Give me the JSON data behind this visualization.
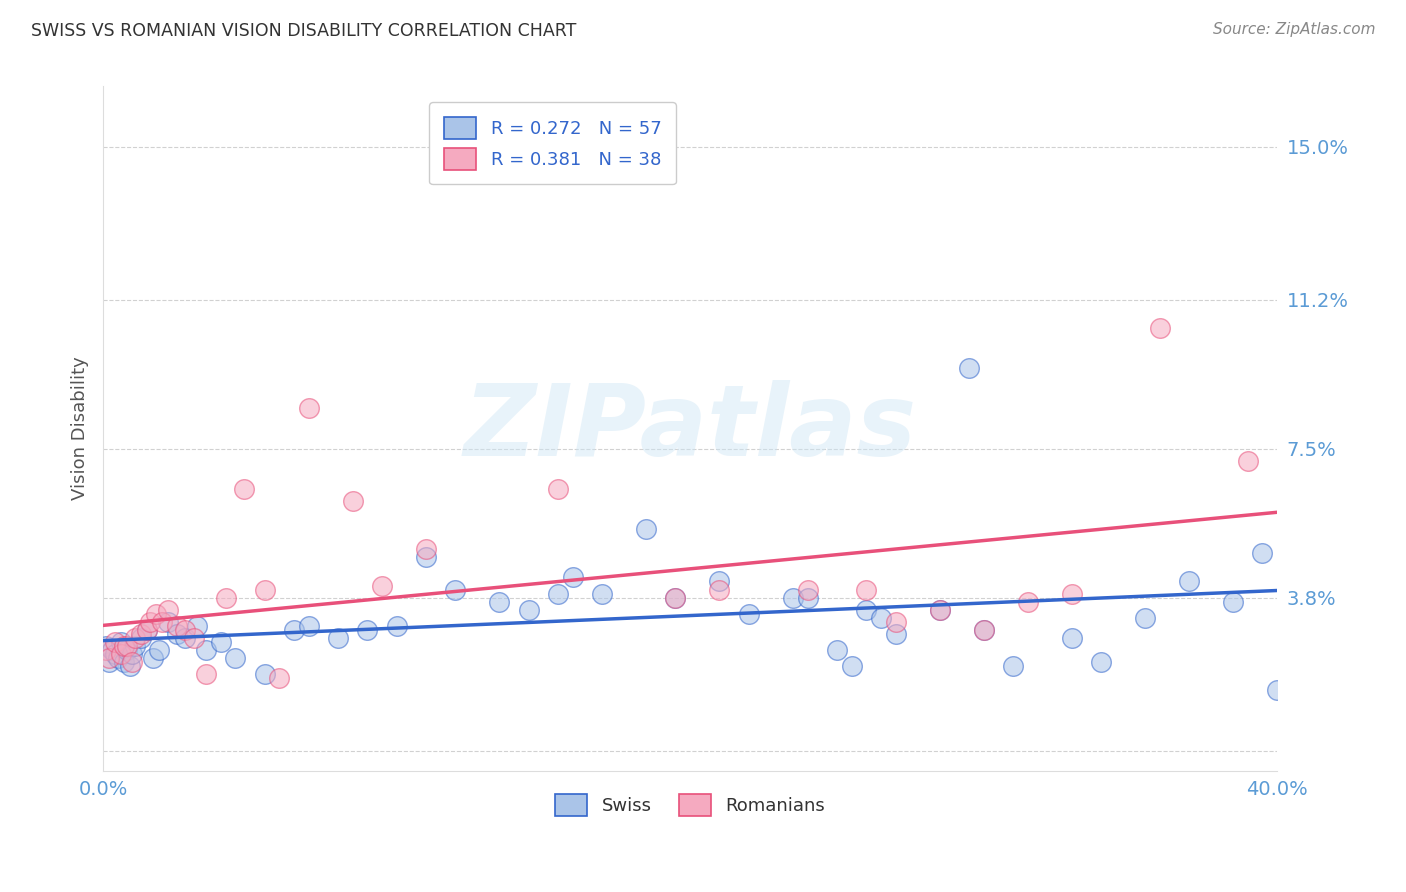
{
  "title": "SWISS VS ROMANIAN VISION DISABILITY CORRELATION CHART",
  "source": "Source: ZipAtlas.com",
  "ylabel": "Vision Disability",
  "xlim": [
    0.0,
    0.4
  ],
  "ylim": [
    -0.005,
    0.165
  ],
  "yticks": [
    0.0,
    0.038,
    0.075,
    0.112,
    0.15
  ],
  "ytick_labels": [
    "",
    "3.8%",
    "7.5%",
    "11.2%",
    "15.0%"
  ],
  "xticks": [
    0.0,
    0.1,
    0.2,
    0.3,
    0.4
  ],
  "xtick_labels": [
    "0.0%",
    "",
    "",
    "",
    "40.0%"
  ],
  "swiss_R": 0.272,
  "swiss_N": 57,
  "romanian_R": 0.381,
  "romanian_N": 38,
  "swiss_color": "#aac4e8",
  "romanian_color": "#f5aac0",
  "swiss_line_color": "#3366cc",
  "romanian_line_color": "#e8507a",
  "watermark": "ZIPatlas",
  "swiss_x": [
    0.001,
    0.002,
    0.003,
    0.004,
    0.005,
    0.006,
    0.007,
    0.008,
    0.009,
    0.01,
    0.011,
    0.013,
    0.015,
    0.017,
    0.019,
    0.022,
    0.025,
    0.028,
    0.032,
    0.035,
    0.04,
    0.045,
    0.055,
    0.065,
    0.07,
    0.08,
    0.09,
    0.1,
    0.11,
    0.12,
    0.135,
    0.145,
    0.155,
    0.16,
    0.17,
    0.185,
    0.195,
    0.21,
    0.22,
    0.235,
    0.24,
    0.25,
    0.255,
    0.26,
    0.265,
    0.27,
    0.285,
    0.295,
    0.3,
    0.31,
    0.33,
    0.34,
    0.355,
    0.37,
    0.385,
    0.395,
    0.4
  ],
  "swiss_y": [
    0.026,
    0.022,
    0.025,
    0.024,
    0.023,
    0.027,
    0.022,
    0.025,
    0.021,
    0.024,
    0.026,
    0.028,
    0.03,
    0.023,
    0.025,
    0.032,
    0.029,
    0.028,
    0.031,
    0.025,
    0.027,
    0.023,
    0.019,
    0.03,
    0.031,
    0.028,
    0.03,
    0.031,
    0.048,
    0.04,
    0.037,
    0.035,
    0.039,
    0.043,
    0.039,
    0.055,
    0.038,
    0.042,
    0.034,
    0.038,
    0.038,
    0.025,
    0.021,
    0.035,
    0.033,
    0.029,
    0.035,
    0.095,
    0.03,
    0.021,
    0.028,
    0.022,
    0.033,
    0.042,
    0.037,
    0.049,
    0.015
  ],
  "romanian_x": [
    0.001,
    0.002,
    0.004,
    0.006,
    0.007,
    0.008,
    0.01,
    0.011,
    0.013,
    0.015,
    0.016,
    0.018,
    0.02,
    0.022,
    0.025,
    0.028,
    0.031,
    0.035,
    0.042,
    0.048,
    0.055,
    0.06,
    0.07,
    0.085,
    0.095,
    0.11,
    0.155,
    0.195,
    0.21,
    0.24,
    0.26,
    0.27,
    0.285,
    0.3,
    0.315,
    0.33,
    0.36,
    0.39
  ],
  "romanian_y": [
    0.025,
    0.023,
    0.027,
    0.024,
    0.026,
    0.026,
    0.022,
    0.028,
    0.029,
    0.03,
    0.032,
    0.034,
    0.032,
    0.035,
    0.031,
    0.03,
    0.028,
    0.019,
    0.038,
    0.065,
    0.04,
    0.018,
    0.085,
    0.062,
    0.041,
    0.05,
    0.065,
    0.038,
    0.04,
    0.04,
    0.04,
    0.032,
    0.035,
    0.03,
    0.037,
    0.039,
    0.105,
    0.072
  ],
  "background_color": "#ffffff",
  "grid_color": "#cccccc",
  "title_color": "#333333",
  "axis_label_color": "#555555",
  "tick_label_color": "#5b9bd5",
  "legend_label_color": "#3366cc"
}
